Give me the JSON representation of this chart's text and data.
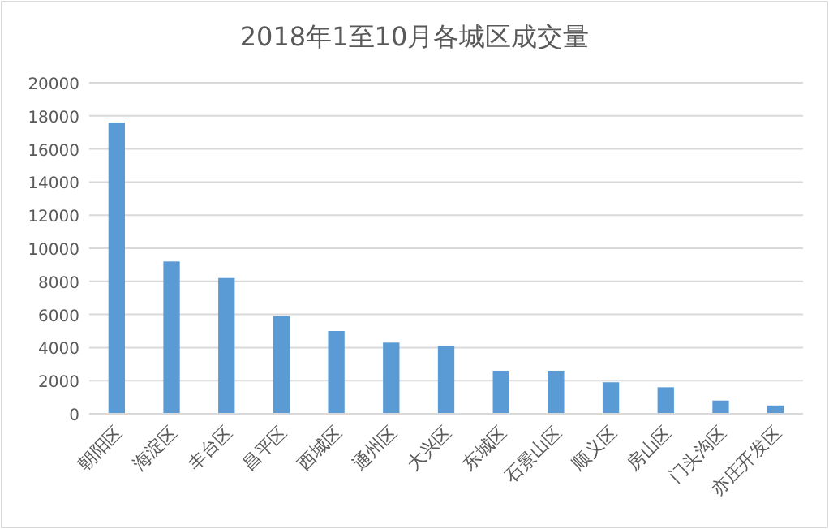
{
  "chart_data": {
    "type": "bar",
    "title": "2018年1至10月各城区成交量",
    "categories": [
      "朝阳区",
      "海淀区",
      "丰台区",
      "昌平区",
      "西城区",
      "通州区",
      "大兴区",
      "东城区",
      "石景山区",
      "顺义区",
      "房山区",
      "门头沟区",
      "亦庄开发区"
    ],
    "values": [
      17600,
      9200,
      8200,
      5900,
      5000,
      4300,
      4100,
      2600,
      2600,
      1900,
      1600,
      800,
      500
    ],
    "color": "#5b9bd5",
    "ylim": [
      0,
      20000
    ],
    "yticks": [
      0,
      2000,
      4000,
      6000,
      8000,
      10000,
      12000,
      14000,
      16000,
      18000,
      20000
    ],
    "grid": "y"
  }
}
